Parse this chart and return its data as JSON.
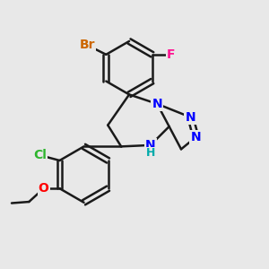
{
  "background_color": "#e8e8e8",
  "bond_color": "#1a1a1a",
  "bond_width": 1.8,
  "atom_colors": {
    "Br": "#cc6600",
    "F": "#ff1493",
    "Cl": "#2db52d",
    "N": "#0000ff",
    "O": "#ff0000",
    "H": "#00aaaa",
    "C": "#1a1a1a"
  },
  "font_size": 10,
  "fig_size": [
    3.0,
    3.0
  ],
  "dpi": 100
}
